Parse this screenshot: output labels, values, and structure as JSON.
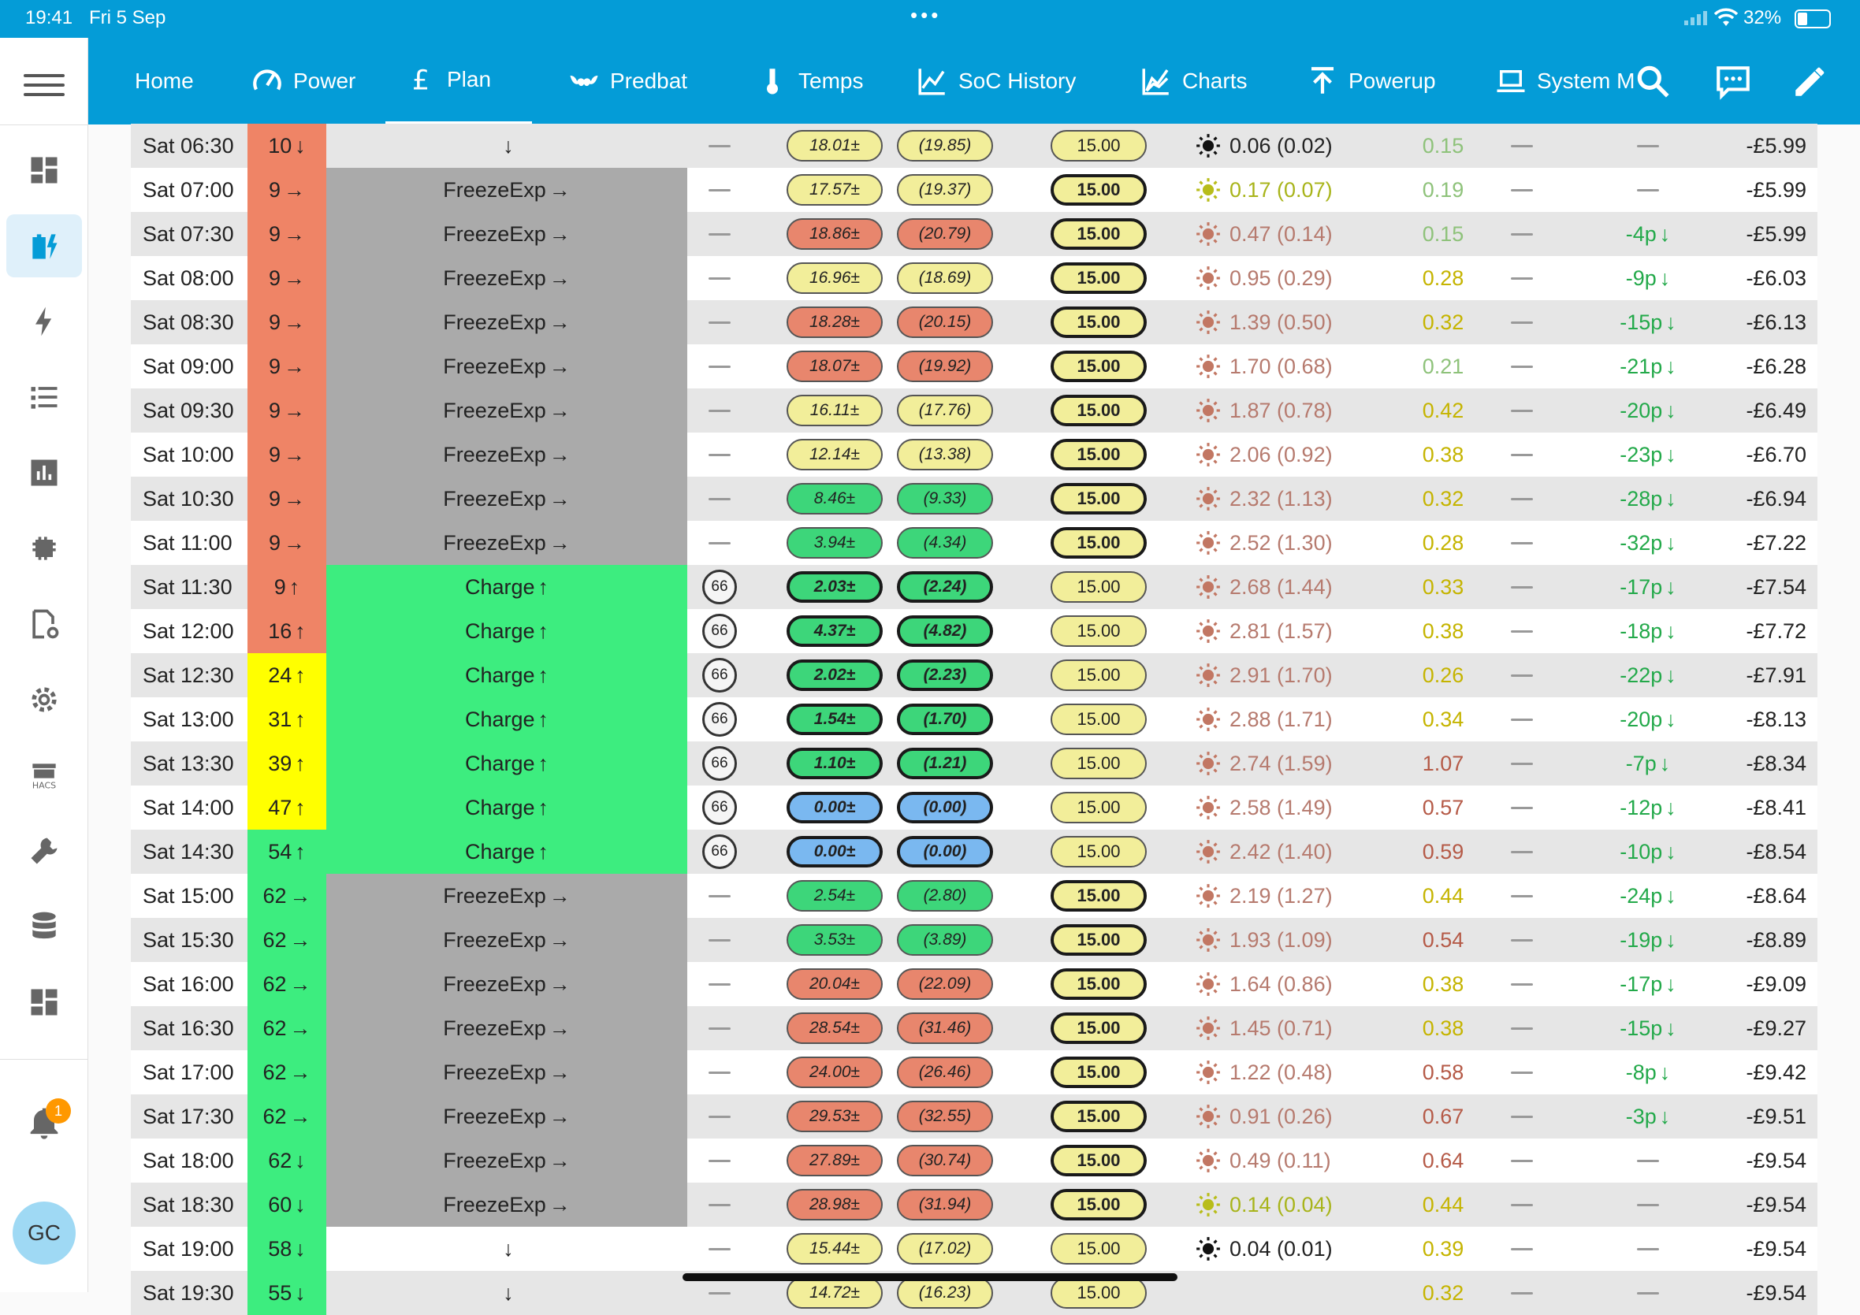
{
  "status_bar": {
    "time": "19:41",
    "date": "Fri 5 Sep",
    "battery": "32%"
  },
  "nav": {
    "tabs": [
      {
        "label": "Home",
        "icon": "home",
        "x": 0
      },
      {
        "label": "Power",
        "icon": "gauge-icon",
        "x": 0
      },
      {
        "label": "Plan",
        "icon": "pound-icon",
        "x": 0
      },
      {
        "label": "Predbat",
        "icon": "bat-icon",
        "x": 0
      },
      {
        "label": "Temps",
        "icon": "thermometer-icon",
        "x": 0
      },
      {
        "label": "SoC History",
        "icon": "line-chart-icon",
        "x": 0
      },
      {
        "label": "Charts",
        "icon": "area-chart-icon",
        "x": 0
      },
      {
        "label": "Powerup",
        "icon": "upload-icon",
        "x": 0
      },
      {
        "label": "System M",
        "icon": "laptop-icon",
        "x": 0
      }
    ]
  },
  "sidebar": {
    "notifications": "1",
    "avatar": "GC"
  },
  "table": {
    "rows": [
      {
        "time": "Sat 06:30",
        "soc": "10",
        "soc_arrow": "↓",
        "soc_color": "#ef8466",
        "state": "",
        "state_arrow": "↓",
        "state_color": "#e6e6e6",
        "limit": "",
        "imp": "18.01±",
        "imp_c": "y",
        "exp": "(19.85)",
        "exp_c": "y",
        "val": "15.00",
        "val_c": "y",
        "val_bold": false,
        "pv": "0.06 (0.02)",
        "pv_c": "#222",
        "sun": "black",
        "load": "0.15",
        "load_c": "#8ec27a",
        "cost": "",
        "cost_arrow": "",
        "total": "-£5.99"
      },
      {
        "time": "Sat 07:00",
        "soc": "9",
        "soc_arrow": "→",
        "soc_color": "#ef8466",
        "state": "FreezeExp",
        "state_arrow": "→",
        "state_color": "#aaaaaa",
        "limit": "",
        "imp": "17.57±",
        "imp_c": "y",
        "exp": "(19.37)",
        "exp_c": "y",
        "val": "15.00",
        "val_c": "y",
        "val_bold": true,
        "pv": "0.17 (0.07)",
        "pv_c": "#a8b41a",
        "sun": "olive",
        "load": "0.19",
        "load_c": "#8ec27a",
        "cost": "",
        "cost_arrow": "",
        "total": "-£5.99"
      },
      {
        "time": "Sat 07:30",
        "soc": "9",
        "soc_arrow": "→",
        "soc_color": "#ef8466",
        "state": "FreezeExp",
        "state_arrow": "→",
        "state_color": "#aaaaaa",
        "limit": "",
        "imp": "18.86±",
        "imp_c": "r",
        "exp": "(20.79)",
        "exp_c": "r",
        "val": "15.00",
        "val_c": "y",
        "val_bold": true,
        "pv": "0.47 (0.14)",
        "pv_c": "#b67a6e",
        "sun": "red",
        "load": "0.15",
        "load_c": "#8ec27a",
        "cost": "-4p",
        "cost_arrow": "↓",
        "total": "-£5.99"
      },
      {
        "time": "Sat 08:00",
        "soc": "9",
        "soc_arrow": "→",
        "soc_color": "#ef8466",
        "state": "FreezeExp",
        "state_arrow": "→",
        "state_color": "#aaaaaa",
        "limit": "",
        "imp": "16.96±",
        "imp_c": "y",
        "exp": "(18.69)",
        "exp_c": "y",
        "val": "15.00",
        "val_c": "y",
        "val_bold": true,
        "pv": "0.95 (0.29)",
        "pv_c": "#b67a6e",
        "sun": "red",
        "load": "0.28",
        "load_c": "#c5b400",
        "cost": "-9p",
        "cost_arrow": "↓",
        "total": "-£6.03"
      },
      {
        "time": "Sat 08:30",
        "soc": "9",
        "soc_arrow": "→",
        "soc_color": "#ef8466",
        "state": "FreezeExp",
        "state_arrow": "→",
        "state_color": "#aaaaaa",
        "limit": "",
        "imp": "18.28±",
        "imp_c": "r",
        "exp": "(20.15)",
        "exp_c": "r",
        "val": "15.00",
        "val_c": "y",
        "val_bold": true,
        "pv": "1.39 (0.50)",
        "pv_c": "#b67a6e",
        "sun": "red",
        "load": "0.32",
        "load_c": "#c5b400",
        "cost": "-15p",
        "cost_arrow": "↓",
        "total": "-£6.13"
      },
      {
        "time": "Sat 09:00",
        "soc": "9",
        "soc_arrow": "→",
        "soc_color": "#ef8466",
        "state": "FreezeExp",
        "state_arrow": "→",
        "state_color": "#aaaaaa",
        "limit": "",
        "imp": "18.07±",
        "imp_c": "r",
        "exp": "(19.92)",
        "exp_c": "r",
        "val": "15.00",
        "val_c": "y",
        "val_bold": true,
        "pv": "1.70 (0.68)",
        "pv_c": "#b67a6e",
        "sun": "red",
        "load": "0.21",
        "load_c": "#8ec27a",
        "cost": "-21p",
        "cost_arrow": "↓",
        "total": "-£6.28"
      },
      {
        "time": "Sat 09:30",
        "soc": "9",
        "soc_arrow": "→",
        "soc_color": "#ef8466",
        "state": "FreezeExp",
        "state_arrow": "→",
        "state_color": "#aaaaaa",
        "limit": "",
        "imp": "16.11±",
        "imp_c": "y",
        "exp": "(17.76)",
        "exp_c": "y",
        "val": "15.00",
        "val_c": "y",
        "val_bold": true,
        "pv": "1.87 (0.78)",
        "pv_c": "#b67a6e",
        "sun": "red",
        "load": "0.42",
        "load_c": "#c5b400",
        "cost": "-20p",
        "cost_arrow": "↓",
        "total": "-£6.49"
      },
      {
        "time": "Sat 10:00",
        "soc": "9",
        "soc_arrow": "→",
        "soc_color": "#ef8466",
        "state": "FreezeExp",
        "state_arrow": "→",
        "state_color": "#aaaaaa",
        "limit": "",
        "imp": "12.14±",
        "imp_c": "y",
        "exp": "(13.38)",
        "exp_c": "y",
        "val": "15.00",
        "val_c": "y",
        "val_bold": true,
        "pv": "2.06 (0.92)",
        "pv_c": "#b67a6e",
        "sun": "red",
        "load": "0.38",
        "load_c": "#c5b400",
        "cost": "-23p",
        "cost_arrow": "↓",
        "total": "-£6.70"
      },
      {
        "time": "Sat 10:30",
        "soc": "9",
        "soc_arrow": "→",
        "soc_color": "#ef8466",
        "state": "FreezeExp",
        "state_arrow": "→",
        "state_color": "#aaaaaa",
        "limit": "",
        "imp": "8.46±",
        "imp_c": "g",
        "exp": "(9.33)",
        "exp_c": "g",
        "val": "15.00",
        "val_c": "y",
        "val_bold": true,
        "pv": "2.32 (1.13)",
        "pv_c": "#b67a6e",
        "sun": "red",
        "load": "0.32",
        "load_c": "#c5b400",
        "cost": "-28p",
        "cost_arrow": "↓",
        "total": "-£6.94"
      },
      {
        "time": "Sat 11:00",
        "soc": "9",
        "soc_arrow": "→",
        "soc_color": "#ef8466",
        "state": "FreezeExp",
        "state_arrow": "→",
        "state_color": "#aaaaaa",
        "limit": "",
        "imp": "3.94±",
        "imp_c": "g",
        "exp": "(4.34)",
        "exp_c": "g",
        "val": "15.00",
        "val_c": "y",
        "val_bold": true,
        "pv": "2.52 (1.30)",
        "pv_c": "#b67a6e",
        "sun": "red",
        "load": "0.28",
        "load_c": "#c5b400",
        "cost": "-32p",
        "cost_arrow": "↓",
        "total": "-£7.22"
      },
      {
        "time": "Sat 11:30",
        "soc": "9",
        "soc_arrow": "↑",
        "soc_color": "#ef8466",
        "state": "Charge",
        "state_arrow": "↑",
        "state_color": "#3ded7f",
        "limit": "66",
        "imp": "2.03±",
        "imp_c": "g",
        "imp_bold": true,
        "exp": "(2.24)",
        "exp_c": "g",
        "exp_bold": true,
        "val": "15.00",
        "val_c": "y",
        "val_bold": false,
        "pv": "2.68 (1.44)",
        "pv_c": "#b67a6e",
        "sun": "red",
        "load": "0.33",
        "load_c": "#c5b400",
        "cost": "-17p",
        "cost_arrow": "↓",
        "total": "-£7.54"
      },
      {
        "time": "Sat 12:00",
        "soc": "16",
        "soc_arrow": "↑",
        "soc_color": "#ef8466",
        "state": "Charge",
        "state_arrow": "↑",
        "state_color": "#3ded7f",
        "limit": "66",
        "imp": "4.37±",
        "imp_c": "g",
        "imp_bold": true,
        "exp": "(4.82)",
        "exp_c": "g",
        "exp_bold": true,
        "val": "15.00",
        "val_c": "y",
        "val_bold": false,
        "pv": "2.81 (1.57)",
        "pv_c": "#b67a6e",
        "sun": "red",
        "load": "0.38",
        "load_c": "#c5b400",
        "cost": "-18p",
        "cost_arrow": "↓",
        "total": "-£7.72"
      },
      {
        "time": "Sat 12:30",
        "soc": "24",
        "soc_arrow": "↑",
        "soc_color": "#ffff00",
        "state": "Charge",
        "state_arrow": "↑",
        "state_color": "#3ded7f",
        "limit": "66",
        "imp": "2.02±",
        "imp_c": "g",
        "imp_bold": true,
        "exp": "(2.23)",
        "exp_c": "g",
        "exp_bold": true,
        "val": "15.00",
        "val_c": "y",
        "val_bold": false,
        "pv": "2.91 (1.70)",
        "pv_c": "#b67a6e",
        "sun": "red",
        "load": "0.26",
        "load_c": "#c5b400",
        "cost": "-22p",
        "cost_arrow": "↓",
        "total": "-£7.91"
      },
      {
        "time": "Sat 13:00",
        "soc": "31",
        "soc_arrow": "↑",
        "soc_color": "#ffff00",
        "state": "Charge",
        "state_arrow": "↑",
        "state_color": "#3ded7f",
        "limit": "66",
        "imp": "1.54±",
        "imp_c": "g",
        "imp_bold": true,
        "exp": "(1.70)",
        "exp_c": "g",
        "exp_bold": true,
        "val": "15.00",
        "val_c": "y",
        "val_bold": false,
        "pv": "2.88 (1.71)",
        "pv_c": "#b67a6e",
        "sun": "red",
        "load": "0.34",
        "load_c": "#c5b400",
        "cost": "-20p",
        "cost_arrow": "↓",
        "total": "-£8.13"
      },
      {
        "time": "Sat 13:30",
        "soc": "39",
        "soc_arrow": "↑",
        "soc_color": "#ffff00",
        "state": "Charge",
        "state_arrow": "↑",
        "state_color": "#3ded7f",
        "limit": "66",
        "imp": "1.10±",
        "imp_c": "g",
        "imp_bold": true,
        "exp": "(1.21)",
        "exp_c": "g",
        "exp_bold": true,
        "val": "15.00",
        "val_c": "y",
        "val_bold": false,
        "pv": "2.74 (1.59)",
        "pv_c": "#b67a6e",
        "sun": "red",
        "load": "1.07",
        "load_c": "#b55a47",
        "cost": "-7p",
        "cost_arrow": "↓",
        "total": "-£8.34"
      },
      {
        "time": "Sat 14:00",
        "soc": "47",
        "soc_arrow": "↑",
        "soc_color": "#ffff00",
        "state": "Charge",
        "state_arrow": "↑",
        "state_color": "#3ded7f",
        "limit": "66",
        "imp": "0.00±",
        "imp_c": "b",
        "imp_bold": true,
        "exp": "(0.00)",
        "exp_c": "b",
        "exp_bold": true,
        "val": "15.00",
        "val_c": "y",
        "val_bold": false,
        "pv": "2.58 (1.49)",
        "pv_c": "#b67a6e",
        "sun": "red",
        "load": "0.57",
        "load_c": "#b55a47",
        "cost": "-12p",
        "cost_arrow": "↓",
        "total": "-£8.41"
      },
      {
        "time": "Sat 14:30",
        "soc": "54",
        "soc_arrow": "↑",
        "soc_color": "#3ded7f",
        "state": "Charge",
        "state_arrow": "↑",
        "state_color": "#3ded7f",
        "limit": "66",
        "imp": "0.00±",
        "imp_c": "b",
        "imp_bold": true,
        "exp": "(0.00)",
        "exp_c": "b",
        "exp_bold": true,
        "val": "15.00",
        "val_c": "y",
        "val_bold": false,
        "pv": "2.42 (1.40)",
        "pv_c": "#b67a6e",
        "sun": "red",
        "load": "0.59",
        "load_c": "#b55a47",
        "cost": "-10p",
        "cost_arrow": "↓",
        "total": "-£8.54"
      },
      {
        "time": "Sat 15:00",
        "soc": "62",
        "soc_arrow": "→",
        "soc_color": "#3ded7f",
        "state": "FreezeExp",
        "state_arrow": "→",
        "state_color": "#aaaaaa",
        "limit": "",
        "imp": "2.54±",
        "imp_c": "g",
        "exp": "(2.80)",
        "exp_c": "g",
        "val": "15.00",
        "val_c": "y",
        "val_bold": true,
        "pv": "2.19 (1.27)",
        "pv_c": "#b67a6e",
        "sun": "red",
        "load": "0.44",
        "load_c": "#c5b400",
        "cost": "-24p",
        "cost_arrow": "↓",
        "total": "-£8.64"
      },
      {
        "time": "Sat 15:30",
        "soc": "62",
        "soc_arrow": "→",
        "soc_color": "#3ded7f",
        "state": "FreezeExp",
        "state_arrow": "→",
        "state_color": "#aaaaaa",
        "limit": "",
        "imp": "3.53±",
        "imp_c": "g",
        "exp": "(3.89)",
        "exp_c": "g",
        "val": "15.00",
        "val_c": "y",
        "val_bold": true,
        "pv": "1.93 (1.09)",
        "pv_c": "#b67a6e",
        "sun": "red",
        "load": "0.54",
        "load_c": "#b55a47",
        "cost": "-19p",
        "cost_arrow": "↓",
        "total": "-£8.89"
      },
      {
        "time": "Sat 16:00",
        "soc": "62",
        "soc_arrow": "→",
        "soc_color": "#3ded7f",
        "state": "FreezeExp",
        "state_arrow": "→",
        "state_color": "#aaaaaa",
        "limit": "",
        "imp": "20.04±",
        "imp_c": "r",
        "exp": "(22.09)",
        "exp_c": "r",
        "val": "15.00",
        "val_c": "y",
        "val_bold": true,
        "pv": "1.64 (0.86)",
        "pv_c": "#b67a6e",
        "sun": "red",
        "load": "0.38",
        "load_c": "#c5b400",
        "cost": "-17p",
        "cost_arrow": "↓",
        "total": "-£9.09"
      },
      {
        "time": "Sat 16:30",
        "soc": "62",
        "soc_arrow": "→",
        "soc_color": "#3ded7f",
        "state": "FreezeExp",
        "state_arrow": "→",
        "state_color": "#aaaaaa",
        "limit": "",
        "imp": "28.54±",
        "imp_c": "r",
        "exp": "(31.46)",
        "exp_c": "r",
        "val": "15.00",
        "val_c": "y",
        "val_bold": true,
        "pv": "1.45 (0.71)",
        "pv_c": "#b67a6e",
        "sun": "red",
        "load": "0.38",
        "load_c": "#c5b400",
        "cost": "-15p",
        "cost_arrow": "↓",
        "total": "-£9.27"
      },
      {
        "time": "Sat 17:00",
        "soc": "62",
        "soc_arrow": "→",
        "soc_color": "#3ded7f",
        "state": "FreezeExp",
        "state_arrow": "→",
        "state_color": "#aaaaaa",
        "limit": "",
        "imp": "24.00±",
        "imp_c": "r",
        "exp": "(26.46)",
        "exp_c": "r",
        "val": "15.00",
        "val_c": "y",
        "val_bold": true,
        "pv": "1.22 (0.48)",
        "pv_c": "#b67a6e",
        "sun": "red",
        "load": "0.58",
        "load_c": "#b55a47",
        "cost": "-8p",
        "cost_arrow": "↓",
        "total": "-£9.42"
      },
      {
        "time": "Sat 17:30",
        "soc": "62",
        "soc_arrow": "→",
        "soc_color": "#3ded7f",
        "state": "FreezeExp",
        "state_arrow": "→",
        "state_color": "#aaaaaa",
        "limit": "",
        "imp": "29.53±",
        "imp_c": "r",
        "exp": "(32.55)",
        "exp_c": "r",
        "val": "15.00",
        "val_c": "y",
        "val_bold": true,
        "pv": "0.91 (0.26)",
        "pv_c": "#b67a6e",
        "sun": "red",
        "load": "0.67",
        "load_c": "#b55a47",
        "cost": "-3p",
        "cost_arrow": "↓",
        "total": "-£9.51"
      },
      {
        "time": "Sat 18:00",
        "soc": "62",
        "soc_arrow": "↓",
        "soc_color": "#3ded7f",
        "state": "FreezeExp",
        "state_arrow": "→",
        "state_color": "#aaaaaa",
        "limit": "",
        "imp": "27.89±",
        "imp_c": "r",
        "exp": "(30.74)",
        "exp_c": "r",
        "val": "15.00",
        "val_c": "y",
        "val_bold": true,
        "pv": "0.49 (0.11)",
        "pv_c": "#b67a6e",
        "sun": "red",
        "load": "0.64",
        "load_c": "#b55a47",
        "cost": "",
        "cost_arrow": "",
        "total": "-£9.54"
      },
      {
        "time": "Sat 18:30",
        "soc": "60",
        "soc_arrow": "↓",
        "soc_color": "#3ded7f",
        "state": "FreezeExp",
        "state_arrow": "→",
        "state_color": "#aaaaaa",
        "limit": "",
        "imp": "28.98±",
        "imp_c": "r",
        "exp": "(31.94)",
        "exp_c": "r",
        "val": "15.00",
        "val_c": "y",
        "val_bold": true,
        "pv": "0.14 (0.04)",
        "pv_c": "#a8b41a",
        "sun": "olive",
        "load": "0.44",
        "load_c": "#c5b400",
        "cost": "",
        "cost_arrow": "",
        "total": "-£9.54"
      },
      {
        "time": "Sat 19:00",
        "soc": "58",
        "soc_arrow": "↓",
        "soc_color": "#3ded7f",
        "state": "",
        "state_arrow": "↓",
        "state_color": "#ffffff",
        "limit": "",
        "imp": "15.44±",
        "imp_c": "y",
        "exp": "(17.02)",
        "exp_c": "y",
        "val": "15.00",
        "val_c": "y",
        "val_bold": false,
        "pv": "0.04 (0.01)",
        "pv_c": "#222",
        "sun": "black",
        "load": "0.39",
        "load_c": "#c5b400",
        "cost": "",
        "cost_arrow": "",
        "total": "-£9.54"
      },
      {
        "time": "Sat 19:30",
        "soc": "55",
        "soc_arrow": "↓",
        "soc_color": "#3ded7f",
        "state": "",
        "state_arrow": "↓",
        "state_color": "#e6e6e6",
        "limit": "",
        "imp": "14.72±",
        "imp_c": "y",
        "exp": "(16.23)",
        "exp_c": "y",
        "val": "15.00",
        "val_c": "y",
        "val_bold": false,
        "pv": "",
        "pv_c": "#222",
        "sun": "none",
        "load": "0.32",
        "load_c": "#c5b400",
        "cost": "",
        "cost_arrow": "",
        "total": "-£9.54"
      }
    ]
  },
  "colors": {
    "accent": "#049cd7",
    "pill_yellow": "#f2ee9a",
    "pill_red": "#e8866d",
    "pill_green": "#3dd67a",
    "pill_blue": "#7ab8f0",
    "cost_green": "#23a94a"
  }
}
